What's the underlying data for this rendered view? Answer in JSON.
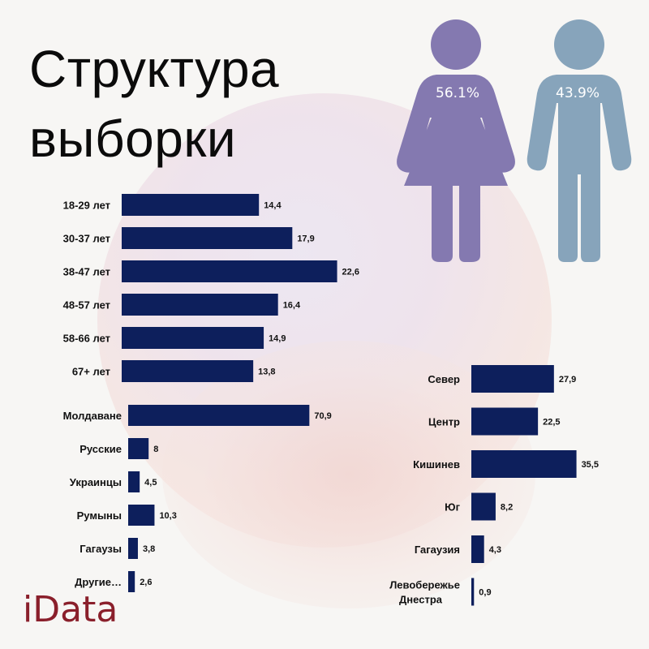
{
  "title_line1": "Структура",
  "title_line2": "выборки",
  "brand": "iData",
  "gender": {
    "female_pct": "56.1%",
    "male_pct": "43.9%",
    "female_color": "#8479b0",
    "male_color": "#87a4bb",
    "female_icon": "female-person-icon",
    "male_icon": "male-person-icon"
  },
  "chart_data": [
    {
      "type": "bar",
      "orientation": "horizontal",
      "categories": [
        "18-29 лет",
        "30-37 лет",
        "38-47 лет",
        "48-57 лет",
        "58-66 лет",
        "67+  лет"
      ],
      "values": [
        14.4,
        17.9,
        22.6,
        16.4,
        14.9,
        13.8
      ],
      "labels": [
        "14,4",
        "17,9",
        "22,6",
        "16,4",
        "14,9",
        "13,8"
      ],
      "color": "#0d1f5c"
    },
    {
      "type": "bar",
      "orientation": "horizontal",
      "categories": [
        "Молдаване",
        "Русские",
        "Украинцы",
        "Румыны",
        "Гагаузы",
        "Другие…"
      ],
      "values": [
        70.9,
        8,
        4.5,
        10.3,
        3.8,
        2.6
      ],
      "labels": [
        "70,9",
        "8",
        "4,5",
        "10,3",
        "3,8",
        "2,6"
      ],
      "color": "#0d1f5c"
    },
    {
      "type": "bar",
      "orientation": "horizontal",
      "categories": [
        "Север",
        "Центр",
        "Кишинев",
        "Юг",
        "Гагаузия",
        "Левобережье Днестра"
      ],
      "values": [
        27.9,
        22.5,
        35.5,
        8.2,
        4.3,
        0.9
      ],
      "labels": [
        "27,9",
        "22,5",
        "35,5",
        "8,2",
        "4,3",
        "0,9"
      ],
      "color": "#0d1f5c"
    }
  ]
}
